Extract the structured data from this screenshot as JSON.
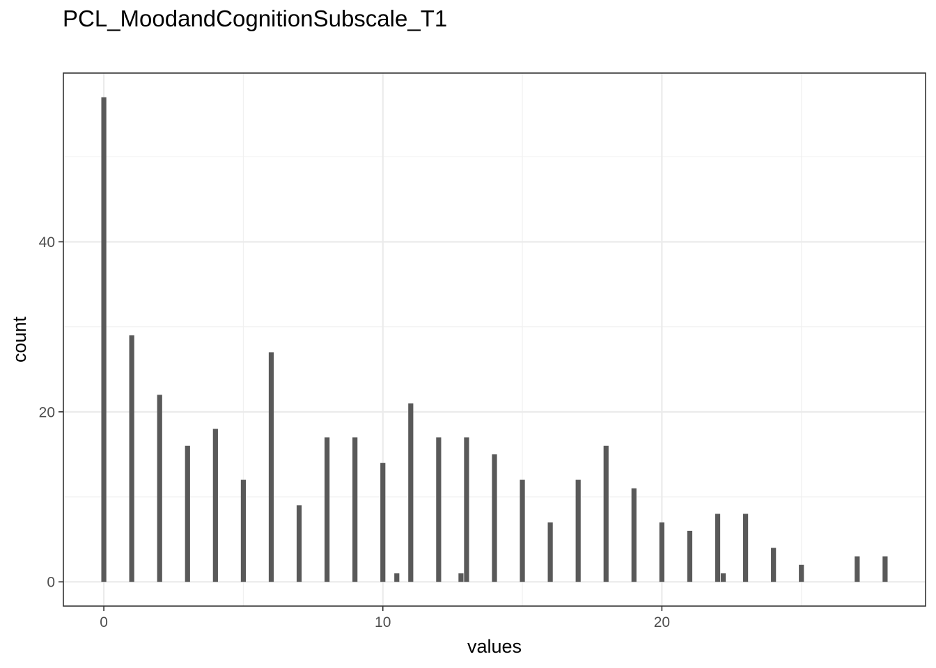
{
  "chart_data": {
    "type": "bar",
    "title": "PCL_MoodandCognitionSubscale_T1",
    "xlabel": "values",
    "ylabel": "count",
    "xlim": [
      -1.45,
      29.45
    ],
    "ylim": [
      -2.85,
      59.85
    ],
    "x_ticks": [
      0,
      10,
      20
    ],
    "y_ticks": [
      0,
      20,
      40
    ],
    "grid": true,
    "bar_color": "#595959",
    "points": [
      {
        "x": 0,
        "y": 57
      },
      {
        "x": 1,
        "y": 29
      },
      {
        "x": 2,
        "y": 22
      },
      {
        "x": 3,
        "y": 16
      },
      {
        "x": 4,
        "y": 18
      },
      {
        "x": 5,
        "y": 12
      },
      {
        "x": 6,
        "y": 27
      },
      {
        "x": 7,
        "y": 9
      },
      {
        "x": 8,
        "y": 17
      },
      {
        "x": 9,
        "y": 17
      },
      {
        "x": 10,
        "y": 14
      },
      {
        "x": 10.5,
        "y": 1
      },
      {
        "x": 11,
        "y": 21
      },
      {
        "x": 12,
        "y": 17
      },
      {
        "x": 12.8,
        "y": 1
      },
      {
        "x": 13,
        "y": 17
      },
      {
        "x": 14,
        "y": 15
      },
      {
        "x": 15,
        "y": 12
      },
      {
        "x": 16,
        "y": 7
      },
      {
        "x": 17,
        "y": 12
      },
      {
        "x": 18,
        "y": 16
      },
      {
        "x": 19,
        "y": 11
      },
      {
        "x": 20,
        "y": 7
      },
      {
        "x": 21,
        "y": 6
      },
      {
        "x": 22,
        "y": 8
      },
      {
        "x": 22.2,
        "y": 1
      },
      {
        "x": 23,
        "y": 8
      },
      {
        "x": 24,
        "y": 4
      },
      {
        "x": 25,
        "y": 2
      },
      {
        "x": 27,
        "y": 3
      },
      {
        "x": 28,
        "y": 3
      }
    ]
  }
}
